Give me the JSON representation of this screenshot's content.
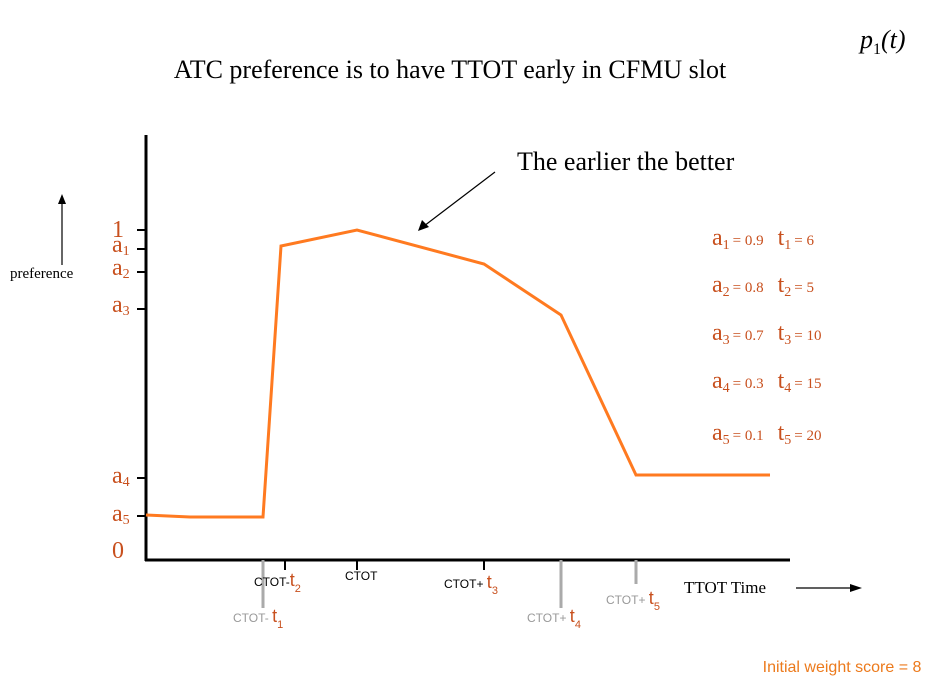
{
  "header": {
    "func": "p",
    "sub": "1",
    "arg": "(t)"
  },
  "title": "ATC preference is to have TTOT early in CFMU slot",
  "annotation": "The earlier the better",
  "y_axis": {
    "label": "preference",
    "ticks": [
      {
        "main": "1"
      },
      {
        "main": "a",
        "sub": "1"
      },
      {
        "main": "a",
        "sub": "2"
      },
      {
        "main": "a",
        "sub": "3"
      },
      {
        "main": "a",
        "sub": "4"
      },
      {
        "main": "a",
        "sub": "5"
      },
      {
        "main": "0"
      }
    ]
  },
  "params": [
    {
      "a": "a",
      "a_sub": "1",
      "a_value": "= 0.9",
      "t": "t",
      "t_sub": "1",
      "t_value": "= 6"
    },
    {
      "a": "a",
      "a_sub": "2",
      "a_value": "= 0.8",
      "t": "t",
      "t_sub": "2",
      "t_value": "= 5"
    },
    {
      "a": "a",
      "a_sub": "3",
      "a_value": "= 0.7",
      "t": "t",
      "t_sub": "3",
      "t_value": "= 10"
    },
    {
      "a": "a",
      "a_sub": "4",
      "a_value": "= 0.3",
      "t": "t",
      "t_sub": "4",
      "t_value": "= 15"
    },
    {
      "a": "a",
      "a_sub": "5",
      "a_value": "= 0.1",
      "t": "t",
      "t_sub": "5",
      "t_value": "= 20"
    }
  ],
  "x_axis": {
    "label": "TTOT Time",
    "ticks": [
      {
        "prefix": "CTOT-",
        "var": "t",
        "sub": "2"
      },
      {
        "prefix": "CTOT"
      },
      {
        "prefix": "CTOT+ ",
        "var": "t",
        "sub": "3"
      },
      {
        "prefix": "CTOT- ",
        "var": "t",
        "sub": "1"
      },
      {
        "prefix": "CTOT+ ",
        "var": "t",
        "sub": "4"
      },
      {
        "prefix": "CTOT+ ",
        "var": "t",
        "sub": "5"
      }
    ]
  },
  "footer": "Initial weight score = 8"
}
